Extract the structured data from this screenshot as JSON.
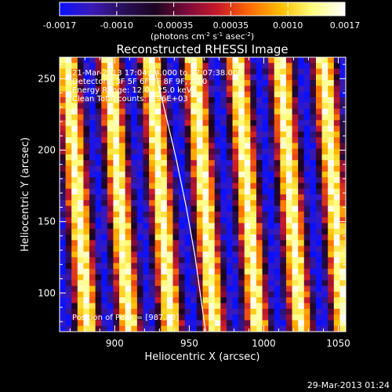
{
  "colorbar": {
    "ticks": [
      "-0.0017",
      "-0.0010",
      "-0.00035",
      "0.00035",
      "0.0010",
      "0.0017"
    ],
    "unit_text": "(photons cm",
    "unit_exp1": "-2",
    "unit_s": " s",
    "unit_exp2": "-1",
    "unit_asec": " asec",
    "unit_exp3": "-2",
    "unit_close": ")",
    "stops": [
      "#0a10ff",
      "#3a1ab8",
      "#2a0f5a",
      "#1a0420",
      "#7a0a3a",
      "#c81a2a",
      "#ff6a00",
      "#ffc000",
      "#ffff80",
      "#ffffff"
    ]
  },
  "annotations": {
    "time_range": "21-Mar-2013 17:04:04.000 to 17:07:38.000",
    "detectors": "Detectors: 3F 5F 6F 7F 8F 9F, All 0",
    "energy_range": "Energy Range: 12.0 - 25.0 keV",
    "clean": "Clean     Total counts: 8.96E+03",
    "peak": "Position of Peak = [987,83]",
    "footer_date": "29-Mar-2013 01:24"
  },
  "chart_data": {
    "type": "heatmap",
    "title": "Reconstructed RHESSI Image",
    "xlabel": "Heliocentric X (arcsec)",
    "ylabel": "Heliocentric Y (arcsec)",
    "xlim": [
      863,
      1055
    ],
    "ylim": [
      73,
      265
    ],
    "x_ticks": [
      900,
      950,
      1000,
      1050
    ],
    "y_ticks": [
      100,
      150,
      200,
      250
    ],
    "stripe_centers_x_at_top": [
      868,
      896,
      924,
      953,
      982,
      1011,
      1040
    ],
    "stripe_tilt_arcsec": 14,
    "colormap": "blue-purple-red-yellow-white",
    "limb_curve": [
      [
        925,
        265
      ],
      [
        933,
        230
      ],
      [
        941,
        195
      ],
      [
        948,
        160
      ],
      [
        954,
        125
      ],
      [
        958,
        95
      ],
      [
        961,
        73
      ]
    ]
  }
}
